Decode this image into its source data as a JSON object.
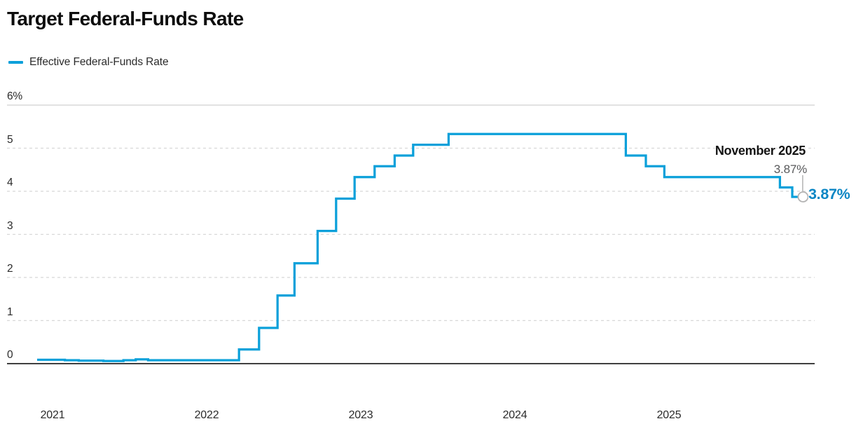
{
  "header": {
    "title": "Target Federal-Funds Rate"
  },
  "legend": {
    "label": "Effective Federal-Funds Rate"
  },
  "annotation": {
    "heading": "November 2025",
    "rate_gray": "3.87%",
    "rate_blue": "3.87%"
  },
  "colors": {
    "line_blue": "#0aa0da",
    "label_blue": "#0b86c4",
    "grid_dashed": "#d8d8d8",
    "grid_top": "#c6c6c6",
    "axis_zero": "#404040",
    "marker_gray": "#b3b3b3",
    "text_dark": "#2b2b2b",
    "text_gray": "#58595b"
  },
  "chart_data": {
    "type": "line",
    "step": true,
    "title": "Target Federal-Funds Rate",
    "xlabel": "",
    "ylabel": "",
    "x_unit": "decimal_year",
    "y_unit": "percent",
    "xlim": [
      2020.9,
      2025.95
    ],
    "ylim": [
      0,
      6
    ],
    "grid": "horizontal-dashed",
    "legend_position": "top-left",
    "y_ticks": [
      {
        "value": 6,
        "label": "6%"
      },
      {
        "value": 5,
        "label": "5"
      },
      {
        "value": 4,
        "label": "4"
      },
      {
        "value": 3,
        "label": "3"
      },
      {
        "value": 2,
        "label": "2"
      },
      {
        "value": 1,
        "label": "1"
      },
      {
        "value": 0,
        "label": "0"
      }
    ],
    "x_ticks": [
      {
        "value": 2021,
        "label": "2021"
      },
      {
        "value": 2022,
        "label": "2022"
      },
      {
        "value": 2023,
        "label": "2023"
      },
      {
        "value": 2024,
        "label": "2024"
      },
      {
        "value": 2025,
        "label": "2025"
      }
    ],
    "series": [
      {
        "name": "Effective Federal-Funds Rate",
        "color": "#0aa0da",
        "points": [
          [
            2020.9,
            0.09
          ],
          [
            2021.08,
            0.08
          ],
          [
            2021.17,
            0.07
          ],
          [
            2021.33,
            0.06
          ],
          [
            2021.46,
            0.08
          ],
          [
            2021.54,
            0.1
          ],
          [
            2021.62,
            0.08
          ],
          [
            2022.21,
            0.33
          ],
          [
            2022.34,
            0.83
          ],
          [
            2022.46,
            1.58
          ],
          [
            2022.57,
            2.33
          ],
          [
            2022.72,
            3.08
          ],
          [
            2022.84,
            3.83
          ],
          [
            2022.96,
            4.33
          ],
          [
            2023.09,
            4.58
          ],
          [
            2023.22,
            4.83
          ],
          [
            2023.34,
            5.08
          ],
          [
            2023.57,
            5.33
          ],
          [
            2024.72,
            4.83
          ],
          [
            2024.85,
            4.58
          ],
          [
            2024.97,
            4.33
          ],
          [
            2025.72,
            4.09
          ],
          [
            2025.8,
            3.87
          ],
          [
            2025.87,
            3.87
          ]
        ]
      }
    ],
    "end_point": {
      "x": 2025.87,
      "value": 3.87,
      "label": "3.87%",
      "annotation": "November 2025"
    }
  }
}
